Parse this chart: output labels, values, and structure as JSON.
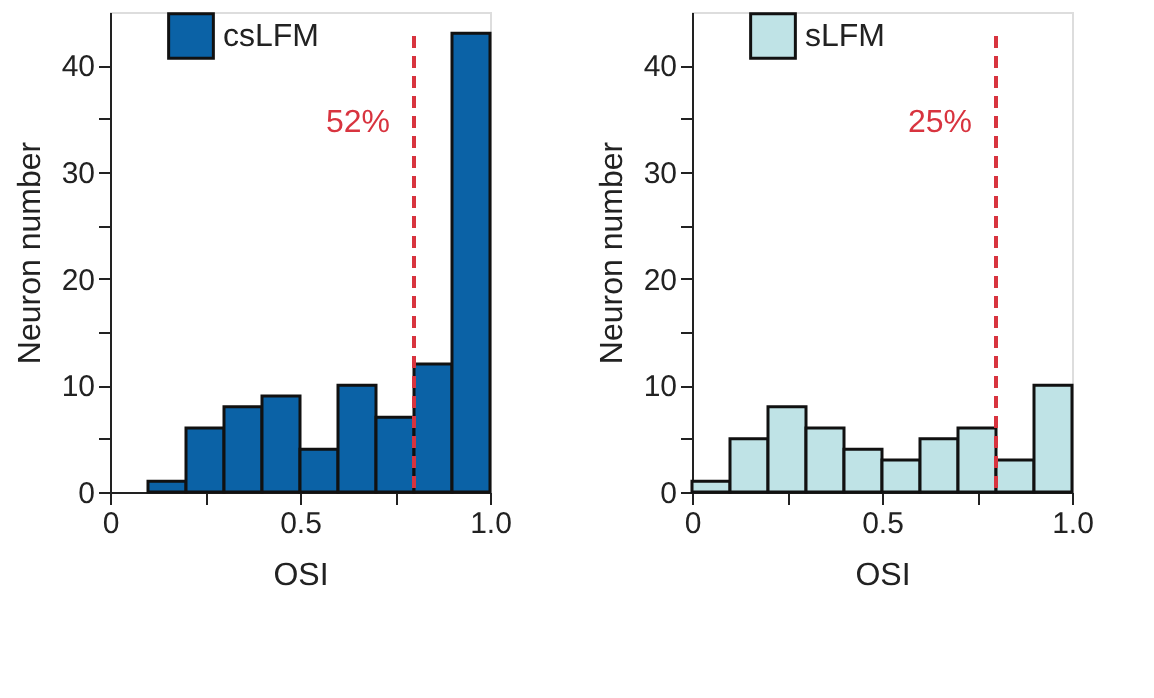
{
  "chart_data": [
    {
      "type": "histogram",
      "xlabel": "OSI",
      "ylabel": "Neuron number",
      "bins": [
        0,
        0.1,
        0.2,
        0.3,
        0.4,
        0.5,
        0.6,
        0.7,
        0.8,
        0.9,
        1.0
      ],
      "series": [
        {
          "name": "csLFM",
          "color": "#0b62a6",
          "values": [
            0,
            1,
            6,
            8,
            9,
            4,
            10,
            7,
            12,
            43
          ]
        }
      ],
      "xlim": [
        0,
        1
      ],
      "xticks": [
        0,
        {
          "value": 0.25,
          "label": null
        },
        0.5,
        {
          "value": 0.75,
          "label": null
        },
        {
          "value": 1,
          "label": "1.0"
        }
      ],
      "ylim": [
        0,
        45
      ],
      "yticks": [
        0,
        {
          "value": 5,
          "label": null
        },
        10,
        {
          "value": 15,
          "label": null
        },
        20,
        {
          "value": 25,
          "label": null
        },
        30,
        {
          "value": 35,
          "label": null
        },
        40
      ],
      "ref_lines": [
        {
          "axis": "x",
          "value": 0.8,
          "color": "#d8343f",
          "line_style": "dashed"
        }
      ],
      "annotations": [
        "52%"
      ],
      "legend": "top",
      "grid": false
    },
    {
      "type": "histogram",
      "xlabel": "OSI",
      "ylabel": "Neuron number",
      "bins": [
        0,
        0.1,
        0.2,
        0.3,
        0.4,
        0.5,
        0.6,
        0.7,
        0.8,
        0.9,
        1.0
      ],
      "series": [
        {
          "name": "sLFM",
          "color": "#bfe3e6",
          "values": [
            1,
            5,
            8,
            6,
            4,
            3,
            5,
            6,
            3,
            10
          ]
        }
      ],
      "xlim": [
        0,
        1
      ],
      "xticks": [
        0,
        {
          "value": 0.25,
          "label": null
        },
        0.5,
        {
          "value": 0.75,
          "label": null
        },
        {
          "value": 1,
          "label": "1.0"
        }
      ],
      "ylim": [
        0,
        45
      ],
      "yticks": [
        0,
        {
          "value": 5,
          "label": null
        },
        10,
        {
          "value": 15,
          "label": null
        },
        20,
        {
          "value": 25,
          "label": null
        },
        30,
        {
          "value": 35,
          "label": null
        },
        40
      ],
      "ref_lines": [
        {
          "axis": "x",
          "value": 0.8,
          "color": "#d8343f",
          "line_style": "dashed"
        }
      ],
      "annotations": [
        "25%"
      ],
      "legend": "top",
      "grid": false
    }
  ]
}
